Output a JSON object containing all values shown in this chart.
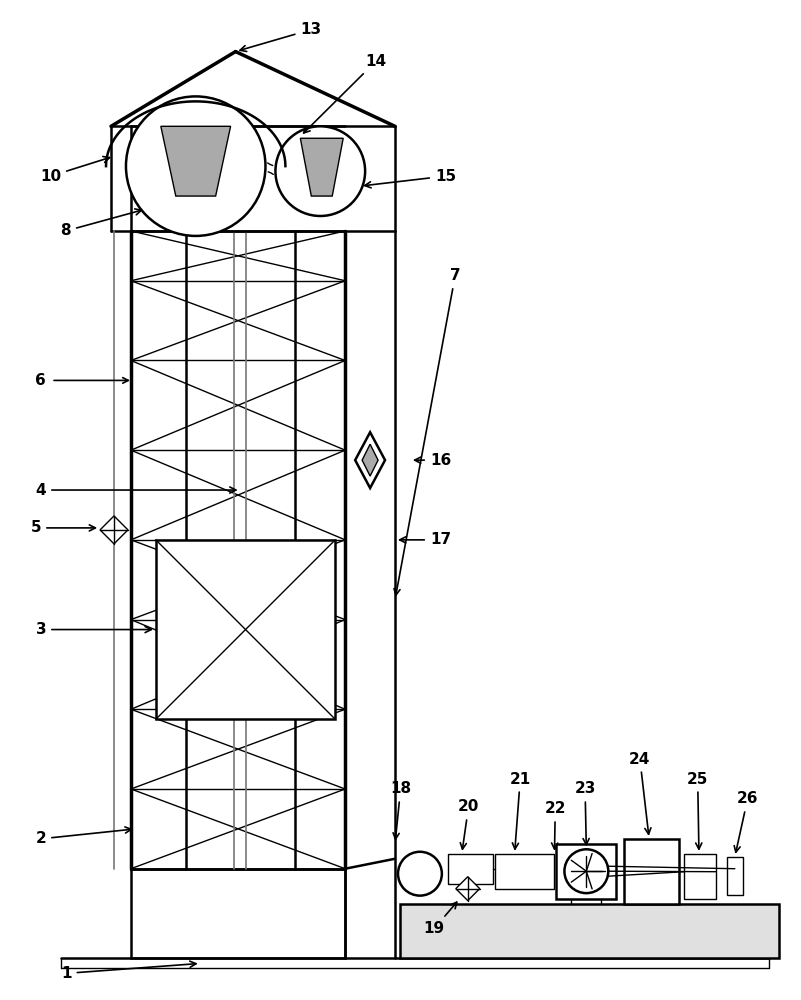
{
  "bg_color": "#ffffff",
  "lc": "#000000",
  "gray": "#aaaaaa",
  "dgray": "#777777"
}
